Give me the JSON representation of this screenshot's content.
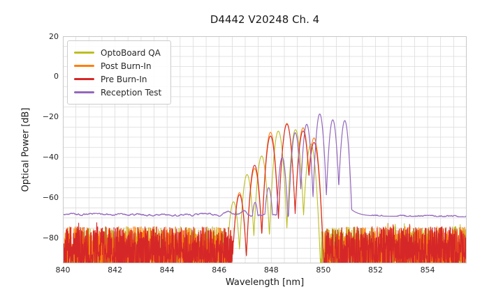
{
  "chart_data": {
    "type": "line",
    "title": "D4442 V20248 Ch. 4",
    "xlabel": "Wavelength [nm]",
    "ylabel": "Optical Power [dB]",
    "xlim": [
      840,
      855.5
    ],
    "ylim": [
      -92.5,
      20
    ],
    "x_ticks": [
      840,
      842,
      844,
      846,
      848,
      850,
      852,
      854
    ],
    "x_tick_labels": [
      "840",
      "842",
      "844",
      "846",
      "848",
      "850",
      "852",
      "854"
    ],
    "y_ticks": [
      20,
      0,
      -20,
      -40,
      -60,
      -80
    ],
    "y_tick_labels": [
      "20",
      "0",
      "−20",
      "−40",
      "−60",
      "−80"
    ],
    "grid": {
      "visible": true,
      "x_step_nm": 0.5,
      "y_step_db": 5,
      "color": "#dcdcdc",
      "border_color": "#c8c8c8"
    },
    "legend": {
      "position": "upper left"
    },
    "series": [
      {
        "name": "OptoBoard QA",
        "color": "#bcbd22",
        "seed": 101,
        "stroke_width": 1.1,
        "peak_half_width_nm": 0.3,
        "peak_falloff_db": 40,
        "peaks": [
          [
            846.55,
            -62.0
          ],
          [
            847.07,
            -48.5
          ],
          [
            847.63,
            -39.3
          ],
          [
            848.27,
            -27.0
          ],
          [
            848.93,
            -26.3
          ],
          [
            849.52,
            -33.5
          ]
        ],
        "noise": {
          "regions": [
            [
              840,
              846.58
            ],
            [
              849.9,
              855.5
            ]
          ],
          "floor_db": [
            -94.5,
            -74.3
          ]
        }
      },
      {
        "name": "Post Burn-In",
        "color": "#ff7f0e",
        "seed": 202,
        "stroke_width": 1.1,
        "peak_half_width_nm": 0.3,
        "peak_falloff_db": 40,
        "peaks": [
          [
            846.78,
            -57.5
          ],
          [
            847.36,
            -45.5
          ],
          [
            847.97,
            -27.6
          ],
          [
            848.6,
            -23.2
          ],
          [
            849.22,
            -25.4
          ],
          [
            849.64,
            -30.4
          ]
        ],
        "noise": {
          "regions": [
            [
              840,
              846.68
            ],
            [
              850.04,
              855.5
            ]
          ],
          "floor_db": [
            -94.5,
            -74.3
          ]
        }
      },
      {
        "name": "Pre Burn-In",
        "color": "#d62728",
        "seed": 303,
        "stroke_width": 1.1,
        "peak_half_width_nm": 0.3,
        "peak_falloff_db": 40,
        "peaks": [
          [
            846.78,
            -58.5
          ],
          [
            847.36,
            -43.9
          ],
          [
            847.97,
            -29.4
          ],
          [
            848.6,
            -23.5
          ],
          [
            849.22,
            -26.9
          ],
          [
            849.64,
            -32.6
          ]
        ],
        "noise": {
          "regions": [
            [
              840,
              846.68
            ],
            [
              850.04,
              855.5
            ]
          ],
          "floor_db": [
            -94.5,
            -74.3
          ]
        }
      },
      {
        "name": "Reception Test",
        "color": "#9467bd",
        "seed": 404,
        "stroke_width": 1.2,
        "peak_half_width_nm": 0.26,
        "peak_falloff_db": 42,
        "peaks": [
          [
            847.38,
            -62.3
          ],
          [
            847.9,
            -55.0
          ],
          [
            848.42,
            -40.0
          ],
          [
            848.92,
            -27.8
          ],
          [
            849.36,
            -23.6
          ],
          [
            849.86,
            -18.5
          ],
          [
            850.36,
            -21.4
          ],
          [
            850.82,
            -21.8
          ]
        ],
        "baseline": {
          "db_start": -68.2,
          "db_end": -69.4,
          "jitter_db": 0.5
        },
        "baseline_bumps": [
          [
            845.55,
            0.7,
            0.3
          ],
          [
            846.33,
            1.5,
            0.17
          ],
          [
            846.97,
            1.9,
            0.15
          ]
        ],
        "drop_tail": {
          "x0": 850.95,
          "amp_db": 5.0,
          "decay_nm": 0.3
        }
      }
    ]
  }
}
